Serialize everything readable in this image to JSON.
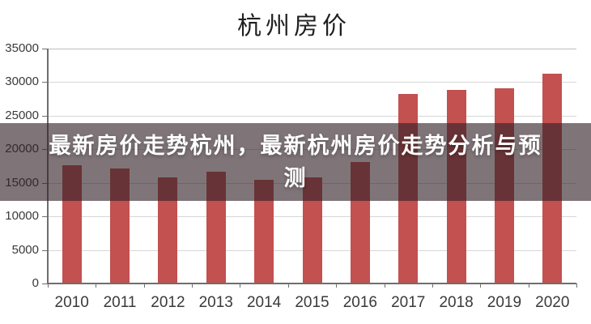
{
  "chart_data": {
    "type": "bar",
    "title": "杭州房价",
    "categories": [
      "2010",
      "2011",
      "2012",
      "2013",
      "2014",
      "2015",
      "2016",
      "2017",
      "2018",
      "2019",
      "2020"
    ],
    "values": [
      17600,
      17150,
      15850,
      16700,
      15500,
      15800,
      18100,
      28200,
      28800,
      29100,
      31200
    ],
    "xlabel": "",
    "ylabel": "",
    "ylim": [
      0,
      35000
    ],
    "ytick_step": 5000,
    "yticks": [
      "35000",
      "30000",
      "25000",
      "20000",
      "15000",
      "10000",
      "5000",
      "0"
    ],
    "grid": "horizontal",
    "legend": "none",
    "bar_color": "#c25150",
    "axis_color": "#6e6e6e",
    "gridline_color": "#d6d6d6",
    "tick_label_color": "#3a3a3a",
    "title_color": "#1f1f1f"
  },
  "overlay": {
    "full_text": "最新房价走势杭州，最新杭州房价走势分析与预测",
    "line1": "最新房价走势杭州，最新杭州房价走势分析与预",
    "line2": "测",
    "background_color": "rgba(48,32,38,0.62)",
    "text_color": "#ffffff"
  }
}
